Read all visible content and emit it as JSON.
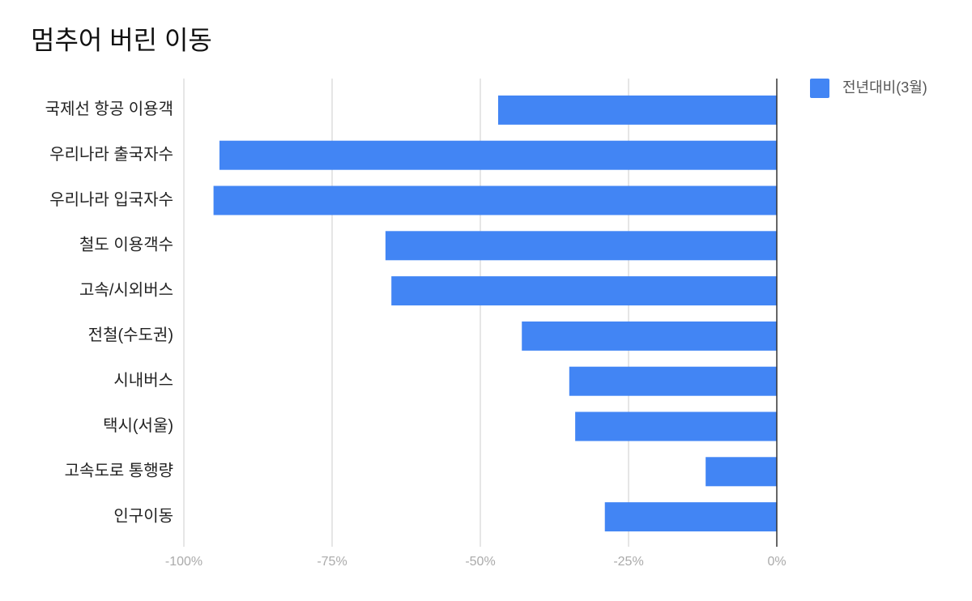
{
  "chart_data": {
    "type": "hbar",
    "title": "멈추어 버린 이동",
    "categories": [
      "국제선 항공 이용객",
      "우리나라 출국자수",
      "우리나라 입국자수",
      "철도 이용객수",
      "고속/시외버스",
      "전철(수도권)",
      "시내버스",
      "택시(서울)",
      "고속도로 통행량",
      "인구이동"
    ],
    "series": [
      {
        "name": "전년대비(3월)",
        "color": "#4285f4",
        "values": [
          -47,
          -94,
          -95,
          -66,
          -65,
          -43,
          -35,
          -34,
          -12,
          -29
        ]
      }
    ],
    "xlim": [
      -100,
      0
    ],
    "xticks": [
      {
        "value": -100,
        "label": "-100%"
      },
      {
        "value": -75,
        "label": "-75%"
      },
      {
        "value": -50,
        "label": "-50%"
      },
      {
        "value": -25,
        "label": "-25%"
      },
      {
        "value": 0,
        "label": "0%"
      }
    ],
    "grid": true,
    "legend": "top-right"
  }
}
